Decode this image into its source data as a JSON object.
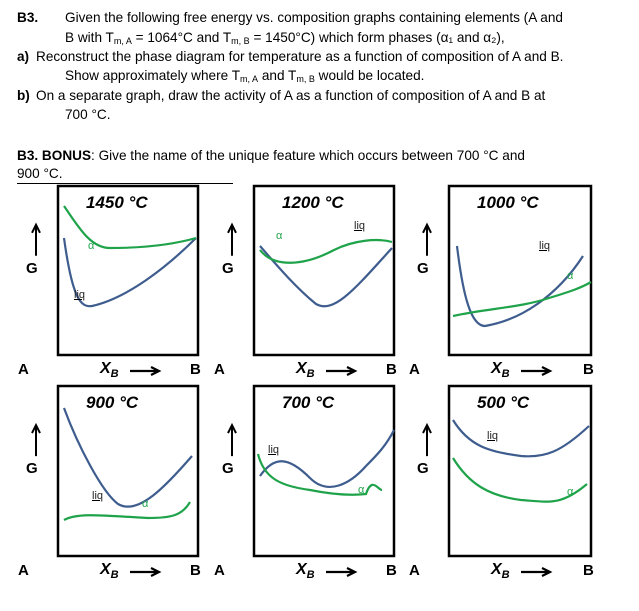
{
  "question": {
    "number": "B3.",
    "line1": "Given the following free energy vs. composition graphs containing elements (A and",
    "line2_pre": "B with T",
    "line2_sub1": "m, A",
    "line2_mid": " = 1064°C and T",
    "line2_sub2": "m, B",
    "line2_post": " = 1450°C) which form phases (α₁ and α₂),",
    "part_a_label": "a)",
    "part_a_line1": "Reconstruct the phase diagram for temperature as a function of composition of A and B.",
    "part_a_line2_pre": "Show approximately where T",
    "part_a_line2_sub1": "m, A",
    "part_a_line2_mid": " and T",
    "part_a_line2_sub2": "m, B",
    "part_a_line2_post": " would be located.",
    "part_b_label": "b)",
    "part_b_line1": "On a separate graph, draw the activity of A as a function of composition of A and B at",
    "part_b_line2": "700 °C."
  },
  "bonus": {
    "label": "B3. BONUS",
    "text": ": Give the name of the unique feature which occurs between 700 °C and",
    "line2": "900 °C."
  },
  "axis": {
    "g_label": "G",
    "left_label": "A",
    "right_label": "B",
    "x_label": "X",
    "x_sub": "B"
  },
  "panels": [
    {
      "title": "1450 °C",
      "labels": [
        "α",
        "liq"
      ]
    },
    {
      "title": "1200 °C",
      "labels": [
        "α",
        "liq"
      ]
    },
    {
      "title": "1000 °C",
      "labels": [
        "liq",
        "α"
      ]
    },
    {
      "title": "900 °C",
      "labels": [
        "liq",
        "α"
      ]
    },
    {
      "title": "700 °C",
      "labels": [
        "liq",
        "α"
      ]
    },
    {
      "title": "500 °C",
      "labels": [
        "liq",
        "α"
      ]
    }
  ],
  "colors": {
    "liquid_curve": "#3e5d8e",
    "alpha_curve": "#1fa34a"
  }
}
